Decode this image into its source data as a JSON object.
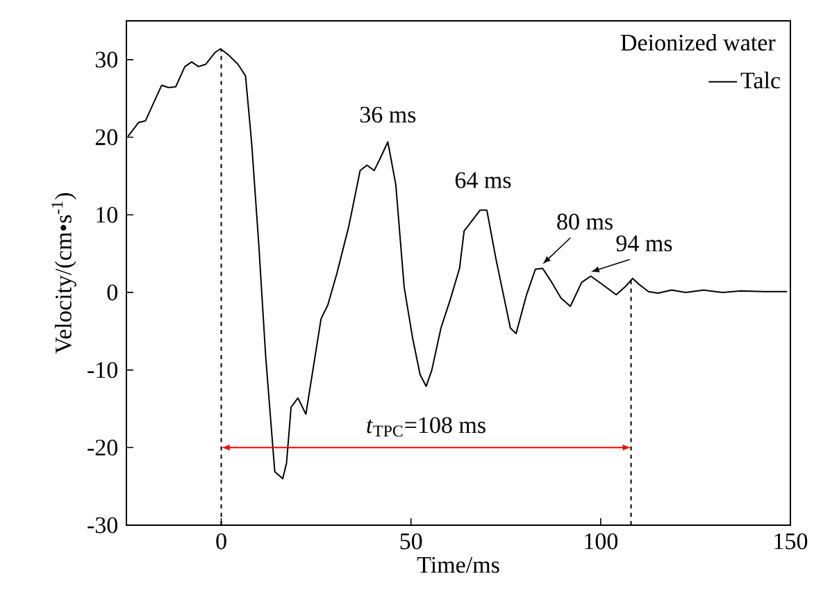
{
  "chart_data": {
    "type": "line",
    "xlabel": "Time/ms",
    "ylabel": "Velocity/(cm•s$^{-1}$)",
    "legend_title": "Deionized water",
    "legend": "top right",
    "marker": "none",
    "line_style": "solid",
    "xlim": [
      -25,
      150
    ],
    "xticks": [
      0,
      50,
      100,
      150
    ],
    "ylim": [
      -30,
      35
    ],
    "yticks": [
      -30,
      -20,
      -10,
      0,
      10,
      20,
      30
    ],
    "series": [
      {
        "name": "Talc",
        "color": "#000000",
        "x": [
          -24.6,
          -21.8,
          -20,
          -15.7,
          -13.9,
          -12,
          -9.6,
          -7.8,
          -6,
          -4.1,
          -1.7,
          -0.2,
          1.9,
          4.4,
          6.4,
          8,
          9.9,
          11.7,
          14.1,
          16.2,
          17.2,
          18.4,
          20.2,
          22.3,
          26.3,
          28.1,
          30.5,
          33.6,
          36.6,
          38.4,
          40.3,
          42.1,
          43.9,
          46,
          48.2,
          50.4,
          52.4,
          54,
          55.5,
          57.9,
          60.3,
          62.8,
          64,
          68.2,
          70,
          72.4,
          76.2,
          77.7,
          80.4,
          82.8,
          84.7,
          87.1,
          89.5,
          92,
          95,
          97.4,
          100.5,
          104.1,
          106.6,
          108.4,
          110.2,
          112.6,
          115.1,
          118.7,
          122.4,
          127.2,
          132.1,
          137,
          143,
          149.1
        ],
        "values": [
          20.1,
          21.9,
          22.1,
          26.7,
          26.4,
          26.5,
          29.1,
          29.7,
          29.1,
          29.4,
          30.9,
          31.4,
          30.6,
          29.4,
          27.9,
          19.3,
          6.1,
          -8.2,
          -23.1,
          -24,
          -22,
          -14.8,
          -13.6,
          -15.7,
          -3.4,
          -1.6,
          2.5,
          8.5,
          15.7,
          16.4,
          15.7,
          17.5,
          19.4,
          13.9,
          0.7,
          -5.8,
          -10.6,
          -12.1,
          -10,
          -4.6,
          -1,
          3.1,
          7.9,
          10.6,
          10.6,
          4.3,
          -4.6,
          -5.3,
          -0.4,
          3,
          3.1,
          1.3,
          -0.7,
          -1.8,
          1.3,
          2.1,
          1,
          -0.3,
          0.8,
          1.8,
          1,
          0.1,
          -0.1,
          0.3,
          0,
          0.3,
          0,
          0.2,
          0.1,
          0.1
        ]
      }
    ],
    "ref_lines": [
      {
        "axis": "x",
        "value": 0,
        "color": "#000000",
        "line_style": "dashed"
      },
      {
        "axis": "x",
        "value": 108,
        "color": "#000000",
        "line_style": "dashed"
      }
    ],
    "annotations": [
      "*t*$_{TPC}$=108 ms",
      {
        "text": "36 ms",
        "x": 43.9,
        "y": 19.4
      },
      {
        "text": "64 ms",
        "x": 69,
        "y": 10.6
      },
      {
        "text": "80 ms",
        "x": 84.7,
        "y": 3.1
      },
      {
        "text": "94 ms",
        "x": 97.4,
        "y": 2.1
      }
    ]
  }
}
